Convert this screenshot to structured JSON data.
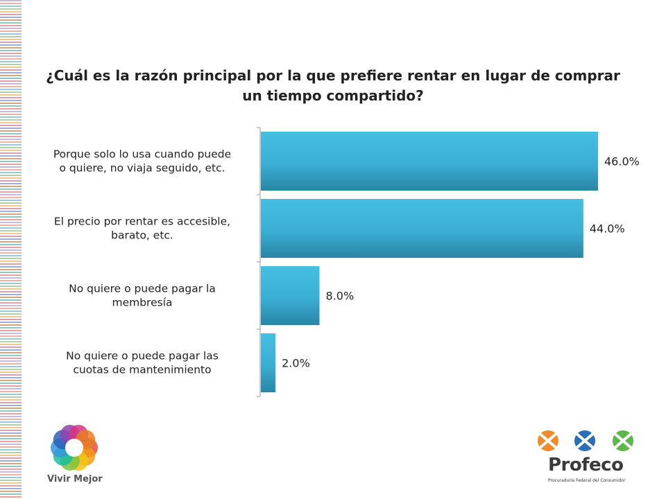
{
  "chart_data": {
    "type": "bar",
    "orientation": "horizontal",
    "title": "¿Cuál es la razón principal por la que prefiere rentar en lugar de comprar un tiempo compartido?",
    "categories": [
      [
        "Porque solo lo usa cuando puede",
        "o quiere, no viaja seguido, etc."
      ],
      [
        "El precio por rentar es accesible,",
        "barato, etc."
      ],
      [
        "No quiere o puede pagar la",
        "membresía"
      ],
      [
        "No quiere o puede pagar las",
        "cuotas de mantenimiento"
      ]
    ],
    "values": [
      46.0,
      44.0,
      8.0,
      2.0
    ],
    "value_labels": [
      "46.0%",
      "44.0%",
      "8.0%",
      "2.0%"
    ],
    "xlim": [
      0,
      46
    ],
    "bar_color": "#3aaed3",
    "grid": false,
    "legend": "none"
  },
  "branding": {
    "left_logo_text": "Vivir Mejor",
    "right_logo_name": "Profeco",
    "right_logo_subtitle": "Procuraduría Federal del Consumidor"
  }
}
